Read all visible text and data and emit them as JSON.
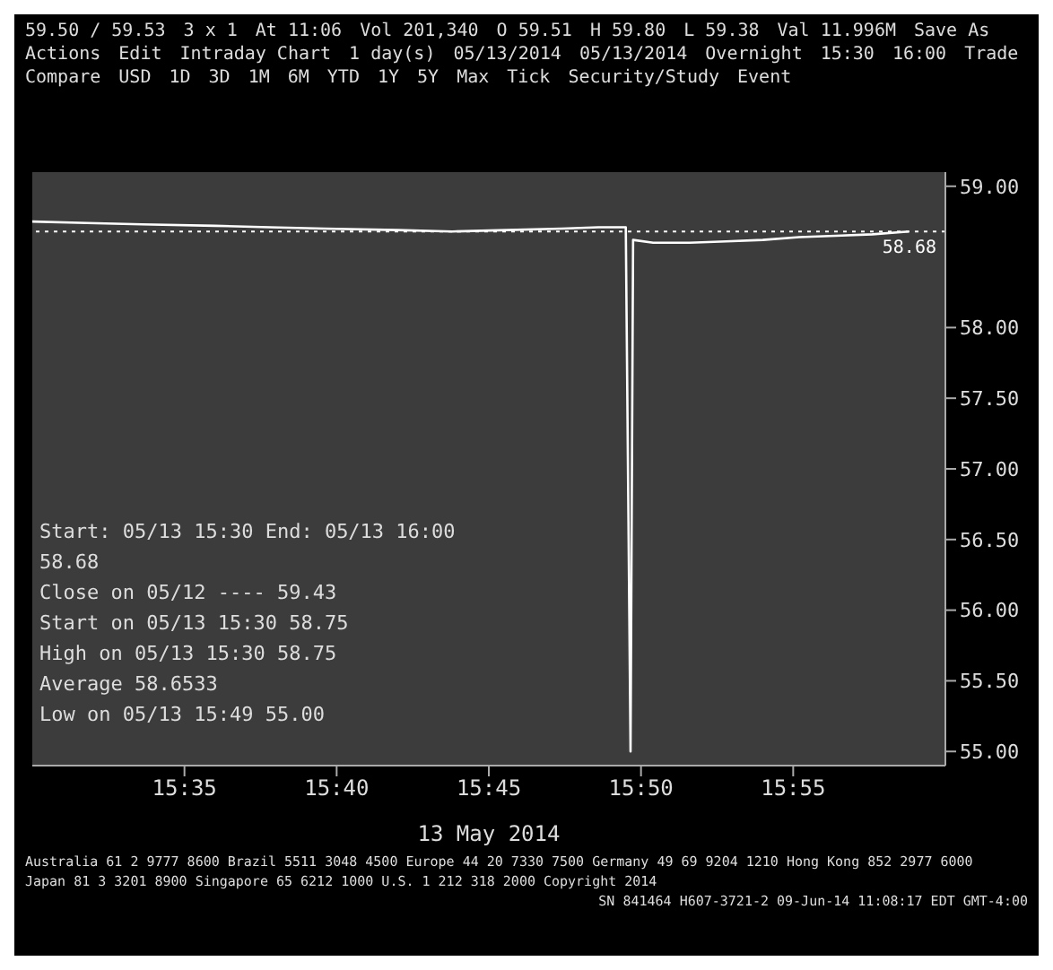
{
  "chart_data": {
    "type": "line",
    "xlabel": "13 May 2014",
    "x": [
      15.5,
      15.53,
      15.56,
      15.6,
      15.63,
      15.66,
      15.7,
      15.73,
      15.76,
      15.79,
      15.81,
      15.825,
      15.8276,
      15.829,
      15.84,
      15.86,
      15.88,
      15.9,
      15.92,
      15.94,
      15.96,
      15.98
    ],
    "series": [
      {
        "color": "#ffffff",
        "values": [
          58.75,
          58.74,
          58.73,
          58.72,
          58.71,
          58.7,
          58.69,
          58.68,
          58.69,
          58.7,
          58.71,
          58.71,
          55.0,
          58.62,
          58.6,
          58.6,
          58.61,
          58.62,
          58.64,
          58.65,
          58.66,
          58.68
        ]
      }
    ],
    "xlim": [
      15.5,
      16.0
    ],
    "xticks": [
      {
        "value": 15.583333,
        "label": "15:35"
      },
      {
        "value": 15.666667,
        "label": "15:40"
      },
      {
        "value": 15.75,
        "label": "15:45"
      },
      {
        "value": 15.833333,
        "label": "15:50"
      },
      {
        "value": 15.916667,
        "label": "15:55"
      }
    ],
    "ylim": [
      54.9,
      59.1
    ],
    "yticks": [
      {
        "value": 55,
        "label": "55.00"
      },
      {
        "value": 55.5,
        "label": "55.50"
      },
      {
        "value": 56,
        "label": "56.00"
      },
      {
        "value": 56.5,
        "label": "56.50"
      },
      {
        "value": 57,
        "label": "57.00"
      },
      {
        "value": 57.5,
        "label": "57.50"
      },
      {
        "value": 58,
        "label": "58.00"
      },
      {
        "value": 59,
        "label": "59.00"
      }
    ],
    "ref_lines": [
      {
        "axis": "y",
        "value": 58.68,
        "label": "58.68",
        "color": "#ffffff",
        "line_style": "dotted"
      }
    ],
    "grid": false,
    "legend": false,
    "marker": "none",
    "line_style": "solid",
    "annotations": [
      "59.50 / 59.53",
      "3 x 1",
      "At 11:06",
      "Vol 201,340",
      "O 59.51",
      "H 59.80",
      "L 59.38",
      "Val 11.996M",
      "Save As",
      "Actions",
      "Edit",
      "Intraday Chart",
      "1 day(s)",
      "05/13/2014",
      "05/13/2014",
      "Overnight",
      "15:30",
      "16:00",
      "Trade",
      "Compare",
      "USD",
      "1D",
      "3D",
      "1M",
      "6M",
      "YTD",
      "1Y",
      "5Y",
      "Max",
      "Tick",
      "Security/Study",
      "Event",
      "Start: 05/13 15:30 End: 05/13 16:00",
      "58.68",
      "Close on 05/12 ---- 59.43",
      "Start on 05/13 15:30 58.75",
      "High on 05/13 15:30 58.75",
      "Average 58.6533",
      "Low on 05/13 15:49 55.00",
      "Australia 61 2 9777 8600 Brazil 5511 3048 4500 Europe 44 20 7330 7500 Germany 49 69 9204 1210 Hong Kong 852 2977 6000",
      "Japan 81 3 3201 8900 Singapore 65 6212 1000 U.S. 1 212 318 2000 Copyright 2014",
      "SN 841464 H607-3721-2 09-Jun-14 11:08:17 EDT GMT-4:00"
    ]
  }
}
